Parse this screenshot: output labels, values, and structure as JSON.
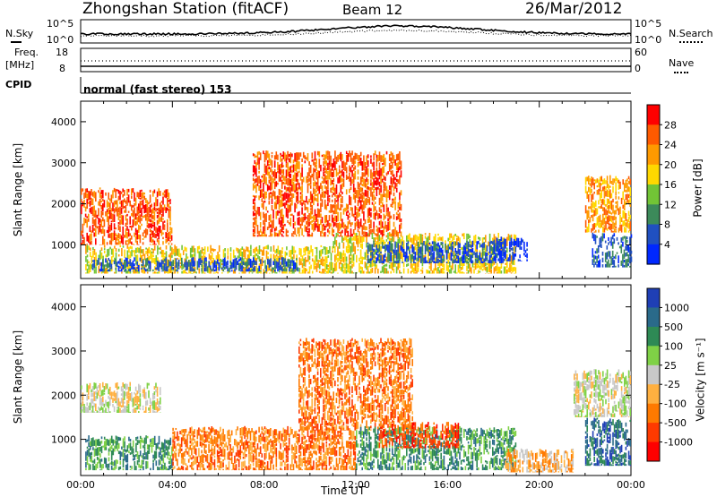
{
  "header": {
    "station": "Zhongshan Station (fitACF)",
    "beam": "Beam 12",
    "date": "26/Mar/2012"
  },
  "noise_panel": {
    "left_label": "N.Sky",
    "right_label": "N.Search",
    "left_ticks": [
      "10^5",
      "10^0"
    ],
    "right_ticks": [
      "10^5",
      "10^0"
    ]
  },
  "freq_panel": {
    "left_label_1": "Freq.",
    "left_label_2": "[MHz]",
    "right_label": "Nave",
    "left_ticks": [
      "18",
      "8"
    ],
    "right_ticks": [
      "60",
      "0"
    ]
  },
  "cpid": {
    "label": "CPID",
    "mode": "normal (fast stereo) 153"
  },
  "power_colorbar": {
    "label": "Power [dB]",
    "ticks": [
      "28",
      "24",
      "20",
      "16",
      "12",
      "8",
      "4"
    ],
    "colors": [
      "#ff0000",
      "#ff5a00",
      "#ff9a00",
      "#ffd800",
      "#72c436",
      "#3c8a5a",
      "#2050c0",
      "#0028ff"
    ]
  },
  "velocity_colorbar": {
    "label": "Velocity [m s⁻¹]",
    "ticks": [
      "1000",
      "500",
      "100",
      "25",
      "-25",
      "-100",
      "-500",
      "-1000"
    ],
    "colors": [
      "#1f3fb5",
      "#2a6a8a",
      "#2e8a55",
      "#7fd146",
      "#c8c8c8",
      "#ffb040",
      "#ff7a00",
      "#ff3a00",
      "#ff0000"
    ]
  },
  "chart_data": [
    {
      "type": "heatmap",
      "title": "Power",
      "xlabel": "",
      "ylabel": "Slant Range [km]",
      "xlim": [
        "00:00",
        "24:00"
      ],
      "ylim": [
        180,
        4500
      ],
      "yticks": [
        1000,
        2000,
        3000,
        4000
      ],
      "colorbar_label": "Power [dB]",
      "colorbar_ticks": [
        4,
        8,
        12,
        16,
        20,
        24,
        28
      ],
      "bands": [
        {
          "t0": 0.2,
          "t1": 11.0,
          "r0": 300,
          "r1": 1000,
          "level": 3
        },
        {
          "t0": 0.5,
          "t1": 9.5,
          "r0": 350,
          "r1": 700,
          "level": 6
        },
        {
          "t0": 11.0,
          "t1": 19.0,
          "r0": 300,
          "r1": 1300,
          "level": 3
        },
        {
          "t0": 12.5,
          "t1": 18.5,
          "r0": 550,
          "r1": 1100,
          "level": 6
        },
        {
          "t0": 18.0,
          "t1": 19.5,
          "r0": 600,
          "r1": 1200,
          "level": 7
        },
        {
          "t0": 22.3,
          "t1": 24.0,
          "r0": 450,
          "r1": 1300,
          "level": 6
        },
        {
          "t0": 0.0,
          "t1": 4.0,
          "r0": 1000,
          "r1": 2400,
          "level": 1
        },
        {
          "t0": 7.5,
          "t1": 14.0,
          "r0": 1200,
          "r1": 3300,
          "level": 1
        },
        {
          "t0": 22.0,
          "t1": 24.0,
          "r0": 1300,
          "r1": 2700,
          "level": 2
        }
      ]
    },
    {
      "type": "heatmap",
      "title": "Velocity",
      "xlabel": "Time UT",
      "ylabel": "Slant Range [km]",
      "xlim": [
        "00:00",
        "24:00"
      ],
      "xticks": [
        "00:00",
        "04:00",
        "08:00",
        "12:00",
        "16:00",
        "20:00",
        "00:00"
      ],
      "ylim": [
        180,
        4500
      ],
      "yticks": [
        1000,
        2000,
        3000,
        4000
      ],
      "colorbar_label": "Velocity [m s⁻¹]",
      "colorbar_ticks": [
        1000,
        500,
        100,
        25,
        -25,
        -100,
        -500,
        -1000
      ],
      "bands": [
        {
          "t0": 0.0,
          "t1": 3.5,
          "r0": 1600,
          "r1": 2300,
          "level": 4
        },
        {
          "t0": 0.2,
          "t1": 4.0,
          "r0": 300,
          "r1": 1100,
          "level": 2
        },
        {
          "t0": 4.0,
          "t1": 12.0,
          "r0": 300,
          "r1": 1300,
          "level": 6
        },
        {
          "t0": 9.5,
          "t1": 14.5,
          "r0": 1200,
          "r1": 3300,
          "level": 6
        },
        {
          "t0": 12.0,
          "t1": 19.0,
          "r0": 300,
          "r1": 1300,
          "level": 2
        },
        {
          "t0": 13.0,
          "t1": 16.5,
          "r0": 800,
          "r1": 1400,
          "level": 7
        },
        {
          "t0": 18.5,
          "t1": 21.5,
          "r0": 250,
          "r1": 800,
          "level": 5
        },
        {
          "t0": 22.0,
          "t1": 24.0,
          "r0": 400,
          "r1": 1500,
          "level": 1
        },
        {
          "t0": 21.5,
          "t1": 24.0,
          "r0": 1500,
          "r1": 2600,
          "level": 4
        }
      ]
    }
  ]
}
